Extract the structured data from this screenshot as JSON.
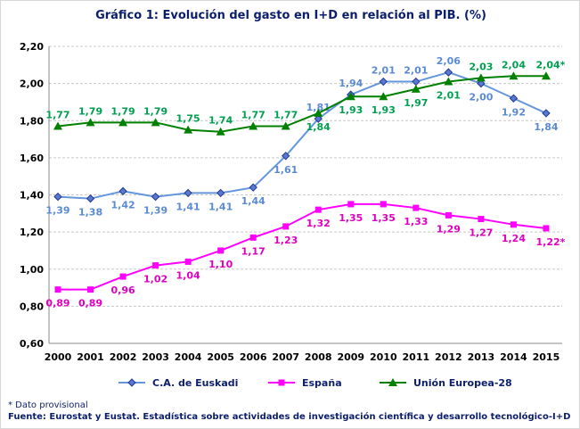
{
  "chart_data": {
    "type": "line",
    "title": "Gráfico 1: Evolución del gasto en I+D en relación al PIB. (%)",
    "x": [
      "2000",
      "2001",
      "2002",
      "2003",
      "2004",
      "2005",
      "2006",
      "2007",
      "2008",
      "2009",
      "2010",
      "2011",
      "2012",
      "2013",
      "2014",
      "2015"
    ],
    "ylim": [
      0.6,
      2.2
    ],
    "yticks": [
      "0,60",
      "0,80",
      "1,00",
      "1,20",
      "1,40",
      "1,60",
      "1,80",
      "2,00",
      "2,20"
    ],
    "grid": true,
    "legend_position": "bottom",
    "series": [
      {
        "name": "C.A. de Euskadi",
        "color": "#6496dc",
        "marker": "diamond",
        "values": [
          1.39,
          1.38,
          1.42,
          1.39,
          1.41,
          1.41,
          1.44,
          1.61,
          1.81,
          1.94,
          2.01,
          2.01,
          2.06,
          2.0,
          1.92,
          1.84
        ],
        "labels": [
          "1,39",
          "1,38",
          "1,42",
          "1,39",
          "1,41",
          "1,41",
          "1,44",
          "1,61",
          "1,81",
          "1,94",
          "2,01",
          "2,01",
          "2,06",
          "2,00",
          "1,92",
          "1,84"
        ]
      },
      {
        "name": "España",
        "color": "#ff00ff",
        "marker": "square",
        "values": [
          0.89,
          0.89,
          0.96,
          1.02,
          1.04,
          1.1,
          1.17,
          1.23,
          1.32,
          1.35,
          1.35,
          1.33,
          1.29,
          1.27,
          1.24,
          1.22
        ],
        "labels": [
          "0,89",
          "0,89",
          "0,96",
          "1,02",
          "1,04",
          "1,10",
          "1,17",
          "1,23",
          "1,32",
          "1,35",
          "1,35",
          "1,33",
          "1,29",
          "1,27",
          "1,24",
          "1,22*"
        ]
      },
      {
        "name": "Unión Europea-28",
        "color": "#008000",
        "marker": "triangle",
        "values": [
          1.77,
          1.79,
          1.79,
          1.79,
          1.75,
          1.74,
          1.77,
          1.77,
          1.84,
          1.93,
          1.93,
          1.97,
          2.01,
          2.03,
          2.04,
          2.04
        ],
        "labels": [
          "1,77",
          "1,79",
          "1,79",
          "1,79",
          "1,75",
          "1,74",
          "1,77",
          "1,77",
          "1,84",
          "1,93",
          "1,93",
          "1,97",
          "2,01",
          "2,03",
          "2,04",
          "2,04*"
        ]
      }
    ]
  },
  "footer": {
    "note": "* Dato provisional",
    "source": "Fuente: Eurostat y Eustat. Estadística sobre actividades de investigación científica y desarrollo tecnológico-I+D"
  }
}
